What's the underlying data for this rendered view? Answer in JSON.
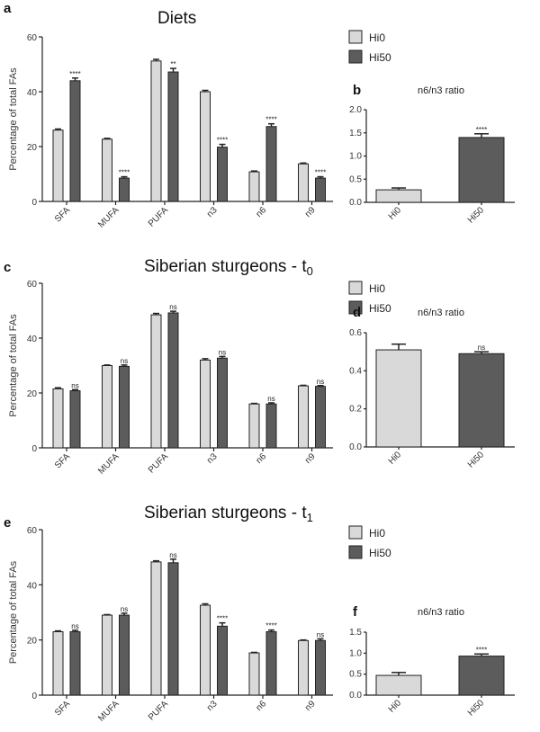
{
  "colors": {
    "Hi0": "#d9d9d9",
    "Hi50": "#5c5c5c",
    "stroke": "#222222"
  },
  "chart_data": [
    {
      "panel": "a",
      "type": "bar",
      "title": "Diets",
      "ylabel": "Percentage of total FAs",
      "ylim": [
        0,
        60
      ],
      "yticks": [
        0,
        20,
        40,
        60
      ],
      "categories": [
        "SFA",
        "MUFA",
        "PUFA",
        "n3",
        "n6",
        "n9"
      ],
      "legend": [
        "Hi0",
        "Hi50"
      ],
      "legend_position": "top-right",
      "series": [
        {
          "name": "Hi0",
          "values": [
            26,
            22.7,
            51.2,
            40,
            10.8,
            13.7
          ],
          "errors": [
            0.4,
            0.3,
            0.6,
            0.5,
            0.3,
            0.3
          ]
        },
        {
          "name": "Hi50",
          "values": [
            44,
            8.5,
            47.2,
            19.8,
            27.3,
            8.5
          ],
          "errors": [
            1,
            0.5,
            1.3,
            1,
            1,
            0.5
          ]
        }
      ],
      "annotations": [
        "****",
        "****",
        "**",
        "****",
        "****",
        "****"
      ]
    },
    {
      "panel": "b",
      "type": "bar",
      "title": "n6/n3 ratio",
      "ylim": [
        0,
        2.0
      ],
      "yticks": [
        "0.0",
        "0.5",
        "1.0",
        "1.5",
        "2.0"
      ],
      "categories": [
        "Hi0",
        "Hi50"
      ],
      "values": [
        0.27,
        1.4
      ],
      "errors": [
        0.04,
        0.08
      ],
      "annotation": "****"
    },
    {
      "panel": "c",
      "type": "bar",
      "title": "Siberian sturgeons - t",
      "title_sub": "0",
      "ylabel": "Percentage of total FAs",
      "ylim": [
        0,
        60
      ],
      "yticks": [
        0,
        20,
        40,
        60
      ],
      "categories": [
        "SFA",
        "MUFA",
        "PUFA",
        "n3",
        "n6",
        "n9"
      ],
      "legend": [
        "Hi0",
        "Hi50"
      ],
      "legend_position": "top-right",
      "series": [
        {
          "name": "Hi0",
          "values": [
            21.5,
            30,
            48.5,
            32,
            16,
            22.6
          ],
          "errors": [
            0.4,
            0.2,
            0.5,
            0.5,
            0.2,
            0.2
          ]
        },
        {
          "name": "Hi50",
          "values": [
            20.8,
            29.7,
            49.2,
            32.7,
            16,
            22.4
          ],
          "errors": [
            0.4,
            0.5,
            0.6,
            0.6,
            0.4,
            0.3
          ]
        }
      ],
      "annotations": [
        "ns",
        "ns",
        "ns",
        "ns",
        "ns",
        "ns"
      ]
    },
    {
      "panel": "d",
      "type": "bar",
      "title": "n6/n3 ratio",
      "ylim": [
        0,
        0.6
      ],
      "yticks": [
        "0.0",
        "0.2",
        "0.4",
        "0.6"
      ],
      "categories": [
        "Hi0",
        "Hi50"
      ],
      "values": [
        0.51,
        0.49
      ],
      "errors": [
        0.03,
        0.01
      ],
      "annotation": "ns"
    },
    {
      "panel": "e",
      "type": "bar",
      "title": "Siberian sturgeons - t",
      "title_sub": "1",
      "ylabel": "Percentage of total FAs",
      "ylim": [
        0,
        60
      ],
      "yticks": [
        0,
        20,
        40,
        60
      ],
      "categories": [
        "SFA",
        "MUFA",
        "PUFA",
        "n3",
        "n6",
        "n9"
      ],
      "legend": [
        "Hi0",
        "Hi50"
      ],
      "legend_position": "top-right",
      "series": [
        {
          "name": "Hi0",
          "values": [
            23,
            29,
            48.3,
            32.6,
            15.3,
            19.8
          ],
          "errors": [
            0.3,
            0.2,
            0.4,
            0.5,
            0.2,
            0.2
          ]
        },
        {
          "name": "Hi50",
          "values": [
            23,
            29,
            48,
            25,
            23,
            19.8
          ],
          "errors": [
            0.5,
            0.7,
            1.3,
            1.2,
            0.6,
            0.6
          ]
        }
      ],
      "annotations": [
        "ns",
        "ns",
        "ns",
        "****",
        "****",
        "ns"
      ]
    },
    {
      "panel": "f",
      "type": "bar",
      "title": "n6/n3 ratio",
      "ylim": [
        0,
        1.5
      ],
      "yticks": [
        "0.0",
        "0.5",
        "1.0",
        "1.5"
      ],
      "categories": [
        "Hi0",
        "Hi50"
      ],
      "values": [
        0.47,
        0.93
      ],
      "errors": [
        0.07,
        0.05
      ],
      "annotation": "****"
    }
  ]
}
